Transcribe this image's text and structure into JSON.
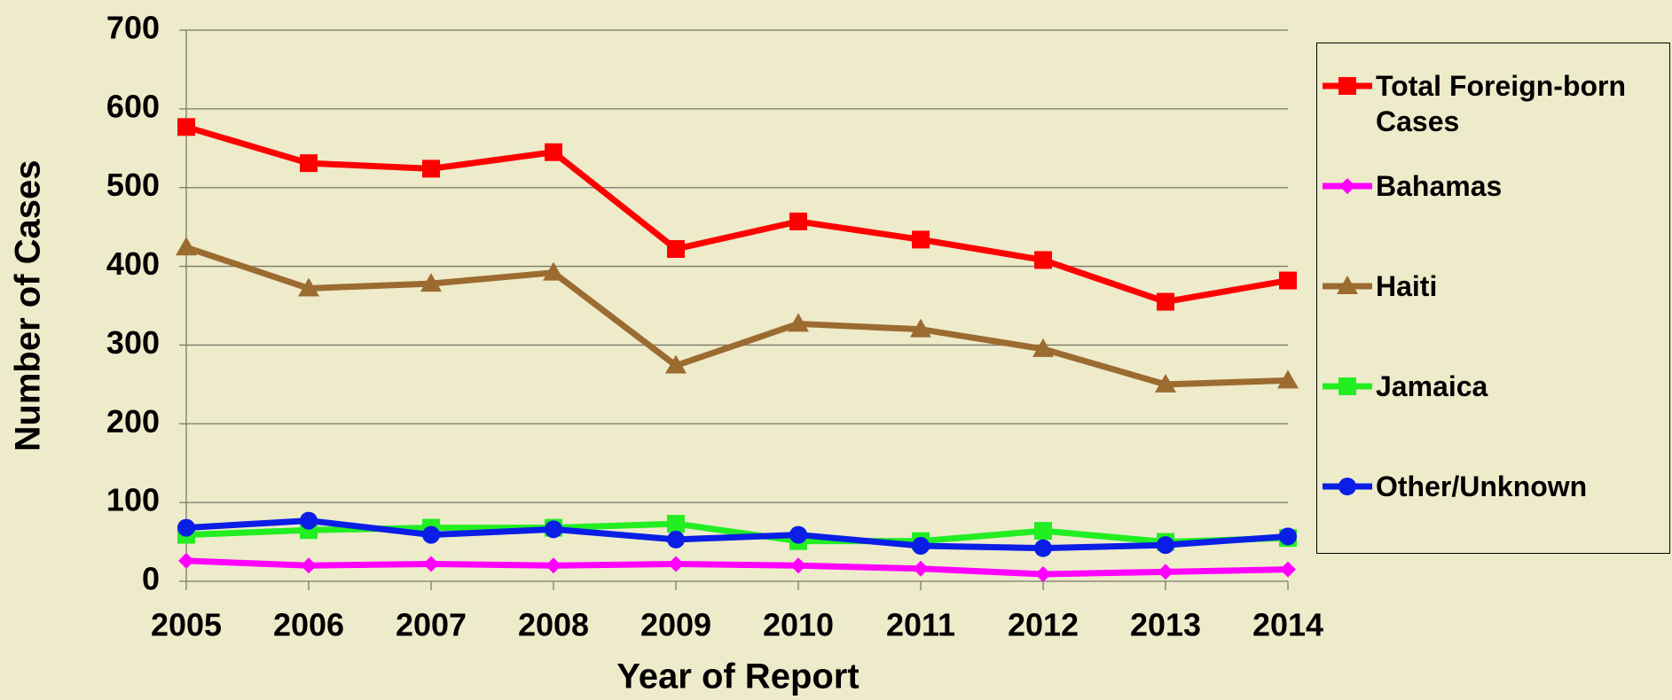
{
  "chart_data": {
    "type": "line",
    "x_label": "Year of Report",
    "y_label": "Number of Cases",
    "categories": [
      "2005",
      "2006",
      "2007",
      "2008",
      "2009",
      "2010",
      "2011",
      "2012",
      "2013",
      "2014"
    ],
    "series": [
      {
        "name": "Total Foreign-born Cases",
        "color": "#ff0000",
        "marker": "square",
        "values": [
          577,
          531,
          524,
          545,
          422,
          457,
          434,
          408,
          355,
          382
        ]
      },
      {
        "name": "Bahamas",
        "color": "#ff00ff",
        "marker": "diamond",
        "values": [
          26,
          20,
          22,
          20,
          22,
          20,
          16,
          9,
          12,
          15
        ]
      },
      {
        "name": "Haiti",
        "color": "#9c6b30",
        "marker": "triangle",
        "values": [
          424,
          372,
          378,
          392,
          274,
          327,
          320,
          295,
          250,
          255
        ]
      },
      {
        "name": "Jamaica",
        "color": "#22ee22",
        "marker": "square",
        "values": [
          59,
          65,
          68,
          68,
          73,
          51,
          51,
          64,
          50,
          55
        ]
      },
      {
        "name": "Other/Unknown",
        "color": "#0a1ee6",
        "marker": "circle",
        "values": [
          68,
          77,
          59,
          66,
          53,
          59,
          45,
          42,
          46,
          57
        ]
      }
    ],
    "ylim": [
      0,
      700
    ],
    "yticks": [
      0,
      100,
      200,
      300,
      400,
      500,
      600,
      700
    ],
    "grid": true,
    "legend": "right"
  }
}
